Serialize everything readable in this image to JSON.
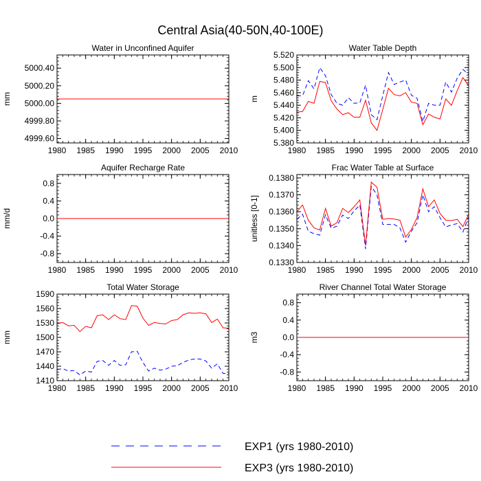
{
  "figure_title": "Central Asia(40-50N,40-100E)",
  "colors": {
    "exp1": "#0000ff",
    "exp3": "#ff0000",
    "axis": "#000000"
  },
  "legend": [
    {
      "label": "EXP1 (yrs 1980-2010)",
      "style": "dashed",
      "color": "#0000ff"
    },
    {
      "label": "EXP3 (yrs 1980-2010)",
      "style": "solid",
      "color": "#ff0000"
    }
  ],
  "chart_data": [
    {
      "type": "line",
      "title": "Water in Unconfined Aquifer",
      "ylabel": "mm",
      "xlim": [
        1980,
        2010
      ],
      "ylim": [
        4999.55,
        5000.55
      ],
      "xticks": [
        "1980",
        "1985",
        "1990",
        "1995",
        "2000",
        "2005",
        "2010"
      ],
      "yticks": [
        "4999.60",
        "4999.80",
        "5000.00",
        "5000.20",
        "5000.40"
      ],
      "x": [
        1980,
        1981,
        1982,
        1983,
        1984,
        1985,
        1986,
        1987,
        1988,
        1989,
        1990,
        1991,
        1992,
        1993,
        1994,
        1995,
        1996,
        1997,
        1998,
        1999,
        2000,
        2001,
        2002,
        2003,
        2004,
        2005,
        2006,
        2007,
        2008,
        2009,
        2010
      ],
      "series": [
        {
          "name": "EXP1",
          "values": [
            5000.05,
            5000.05,
            5000.05,
            5000.05,
            5000.05,
            5000.05,
            5000.05,
            5000.05,
            5000.05,
            5000.05,
            5000.05,
            5000.05,
            5000.05,
            5000.05,
            5000.05,
            5000.05,
            5000.05,
            5000.05,
            5000.05,
            5000.05,
            5000.05,
            5000.05,
            5000.05,
            5000.05,
            5000.05,
            5000.05,
            5000.05,
            5000.05,
            5000.05,
            5000.05,
            5000.05
          ]
        },
        {
          "name": "EXP3",
          "values": [
            5000.05,
            5000.05,
            5000.05,
            5000.05,
            5000.05,
            5000.05,
            5000.05,
            5000.05,
            5000.05,
            5000.05,
            5000.05,
            5000.05,
            5000.05,
            5000.05,
            5000.05,
            5000.05,
            5000.05,
            5000.05,
            5000.05,
            5000.05,
            5000.05,
            5000.05,
            5000.05,
            5000.05,
            5000.05,
            5000.05,
            5000.05,
            5000.05,
            5000.05,
            5000.05,
            5000.05
          ]
        }
      ]
    },
    {
      "type": "line",
      "title": "Water Table Depth",
      "ylabel": "m",
      "xlim": [
        1980,
        2010
      ],
      "ylim": [
        5.38,
        5.52
      ],
      "xticks": [
        "1980",
        "1985",
        "1990",
        "1995",
        "2000",
        "2005",
        "2010"
      ],
      "yticks": [
        "5.380",
        "5.400",
        "5.420",
        "5.440",
        "5.460",
        "5.480",
        "5.500",
        "5.520"
      ],
      "x": [
        1980,
        1981,
        1982,
        1983,
        1984,
        1985,
        1986,
        1987,
        1988,
        1989,
        1990,
        1991,
        1992,
        1993,
        1994,
        1995,
        1996,
        1997,
        1998,
        1999,
        2000,
        2001,
        2002,
        2003,
        2004,
        2005,
        2006,
        2007,
        2008,
        2009,
        2010
      ],
      "series": [
        {
          "name": "EXP1",
          "values": [
            5.455,
            5.455,
            5.479,
            5.466,
            5.5,
            5.487,
            5.457,
            5.443,
            5.44,
            5.452,
            5.443,
            5.444,
            5.472,
            5.425,
            5.417,
            5.455,
            5.492,
            5.473,
            5.477,
            5.48,
            5.456,
            5.451,
            5.414,
            5.443,
            5.44,
            5.44,
            5.477,
            5.461,
            5.483,
            5.497,
            5.489
          ]
        },
        {
          "name": "EXP3",
          "values": [
            5.429,
            5.43,
            5.446,
            5.443,
            5.478,
            5.476,
            5.447,
            5.434,
            5.425,
            5.428,
            5.421,
            5.421,
            5.448,
            5.412,
            5.4,
            5.433,
            5.467,
            5.457,
            5.455,
            5.46,
            5.445,
            5.443,
            5.409,
            5.426,
            5.421,
            5.418,
            5.45,
            5.44,
            5.463,
            5.484,
            5.471
          ]
        }
      ]
    },
    {
      "type": "line",
      "title": "Aquifer Recharge Rate",
      "ylabel": "mm/d",
      "xlim": [
        1980,
        2010
      ],
      "ylim": [
        -1.0,
        1.0
      ],
      "xticks": [
        "1980",
        "1985",
        "1990",
        "1995",
        "2000",
        "2005",
        "2010"
      ],
      "yticks": [
        "-0.8",
        "-0.4",
        "0.0",
        "0.4",
        "0.8"
      ],
      "x": [
        1980,
        1981,
        1982,
        1983,
        1984,
        1985,
        1986,
        1987,
        1988,
        1989,
        1990,
        1991,
        1992,
        1993,
        1994,
        1995,
        1996,
        1997,
        1998,
        1999,
        2000,
        2001,
        2002,
        2003,
        2004,
        2005,
        2006,
        2007,
        2008,
        2009,
        2010
      ],
      "series": [
        {
          "name": "EXP1",
          "values": [
            0,
            0,
            0,
            0,
            0,
            0,
            0,
            0,
            0,
            0,
            0,
            0,
            0,
            0,
            0,
            0,
            0,
            0,
            0,
            0,
            0,
            0,
            0,
            0,
            0,
            0,
            0,
            0,
            0,
            0,
            0
          ]
        },
        {
          "name": "EXP3",
          "values": [
            0,
            0,
            0,
            0,
            0,
            0,
            0,
            0,
            0,
            0,
            0,
            0,
            0,
            0,
            0,
            0,
            0,
            0,
            0,
            0,
            0,
            0,
            0,
            0,
            0,
            0,
            0,
            0,
            0,
            0,
            0
          ]
        }
      ]
    },
    {
      "type": "line",
      "title": "Frac Water Table at Surface",
      "ylabel": "unitless [0-1]",
      "xlim": [
        1980,
        2010
      ],
      "ylim": [
        0.133,
        0.1382
      ],
      "xticks": [
        "1980",
        "1985",
        "1990",
        "1995",
        "2000",
        "2005",
        "2010"
      ],
      "yticks": [
        "0.1330",
        "0.1340",
        "0.1350",
        "0.1360",
        "0.1370",
        "0.1380"
      ],
      "x": [
        1980,
        1981,
        1982,
        1983,
        1984,
        1985,
        1986,
        1987,
        1988,
        1989,
        1990,
        1991,
        1992,
        1993,
        1994,
        1995,
        1996,
        1997,
        1998,
        1999,
        2000,
        2001,
        2002,
        2003,
        2004,
        2005,
        2006,
        2007,
        2008,
        2009,
        2010
      ],
      "series": [
        {
          "name": "EXP1",
          "values": [
            0.13555,
            0.13585,
            0.13485,
            0.1347,
            0.13462,
            0.13582,
            0.13502,
            0.13515,
            0.1358,
            0.1356,
            0.13605,
            0.1364,
            0.1338,
            0.1375,
            0.137,
            0.13525,
            0.13525,
            0.13525,
            0.13505,
            0.1342,
            0.13485,
            0.13535,
            0.137,
            0.136,
            0.1363,
            0.13565,
            0.1351,
            0.13522,
            0.1353,
            0.1348,
            0.1357
          ]
        },
        {
          "name": "EXP3",
          "values": [
            0.136,
            0.1364,
            0.1355,
            0.13505,
            0.13492,
            0.1362,
            0.13515,
            0.13535,
            0.1362,
            0.13595,
            0.1363,
            0.1367,
            0.134,
            0.13775,
            0.13745,
            0.13555,
            0.1356,
            0.13557,
            0.1355,
            0.1345,
            0.13495,
            0.13565,
            0.13735,
            0.1363,
            0.1367,
            0.1359,
            0.1355,
            0.13548,
            0.13555,
            0.13512,
            0.13585
          ]
        }
      ]
    },
    {
      "type": "line",
      "title": "Total Water Storage",
      "ylabel": "mm",
      "xlim": [
        1980,
        2010
      ],
      "ylim": [
        1410,
        1590
      ],
      "xticks": [
        "1980",
        "1985",
        "1990",
        "1995",
        "2000",
        "2005",
        "2010"
      ],
      "yticks": [
        "1410",
        "1440",
        "1470",
        "1500",
        "1530",
        "1560",
        "1590"
      ],
      "x": [
        1980,
        1981,
        1982,
        1983,
        1984,
        1985,
        1986,
        1987,
        1988,
        1989,
        1990,
        1991,
        1992,
        1993,
        1994,
        1995,
        1996,
        1997,
        1998,
        1999,
        2000,
        2001,
        2002,
        2003,
        2004,
        2005,
        2006,
        2007,
        2008,
        2009,
        2010
      ],
      "series": [
        {
          "name": "EXP1",
          "values": [
            1433,
            1435,
            1430,
            1431,
            1422,
            1430,
            1428,
            1450,
            1452,
            1442,
            1452,
            1442,
            1443,
            1470,
            1471,
            1448,
            1430,
            1436,
            1432,
            1434,
            1440,
            1441,
            1448,
            1453,
            1455,
            1455,
            1451,
            1436,
            1445,
            1425,
            1425
          ]
        },
        {
          "name": "EXP3",
          "values": [
            1528,
            1531,
            1524,
            1525,
            1512,
            1523,
            1520,
            1545,
            1547,
            1537,
            1547,
            1539,
            1537,
            1566,
            1565,
            1540,
            1525,
            1531,
            1529,
            1528,
            1535,
            1537,
            1547,
            1551,
            1550,
            1551,
            1549,
            1531,
            1538,
            1520,
            1519
          ]
        }
      ]
    },
    {
      "type": "line",
      "title": "River Channel Total Water Storage",
      "ylabel": "m3",
      "xlim": [
        1980,
        2010
      ],
      "ylim": [
        -1.0,
        1.0
      ],
      "xticks": [
        "1980",
        "1985",
        "1990",
        "1995",
        "2000",
        "2005",
        "2010"
      ],
      "yticks": [
        "-0.8",
        "-0.4",
        "0.0",
        "0.4",
        "0.8"
      ],
      "x": [
        1980,
        1981,
        1982,
        1983,
        1984,
        1985,
        1986,
        1987,
        1988,
        1989,
        1990,
        1991,
        1992,
        1993,
        1994,
        1995,
        1996,
        1997,
        1998,
        1999,
        2000,
        2001,
        2002,
        2003,
        2004,
        2005,
        2006,
        2007,
        2008,
        2009,
        2010
      ],
      "series": [
        {
          "name": "EXP1",
          "values": [
            0,
            0,
            0,
            0,
            0,
            0,
            0,
            0,
            0,
            0,
            0,
            0,
            0,
            0,
            0,
            0,
            0,
            0,
            0,
            0,
            0,
            0,
            0,
            0,
            0,
            0,
            0,
            0,
            0,
            0,
            0
          ]
        },
        {
          "name": "EXP3",
          "values": [
            0,
            0,
            0,
            0,
            0,
            0,
            0,
            0,
            0,
            0,
            0,
            0,
            0,
            0,
            0,
            0,
            0,
            0,
            0,
            0,
            0,
            0,
            0,
            0,
            0,
            0,
            0,
            0,
            0,
            0,
            0
          ]
        }
      ]
    }
  ]
}
